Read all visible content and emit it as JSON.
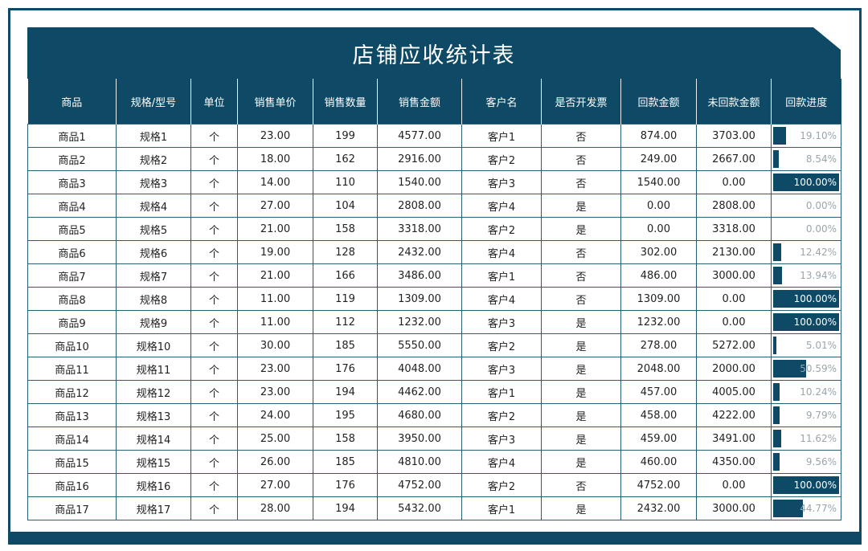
{
  "title": "店铺应收统计表",
  "columns": [
    "商品",
    "规格/型号",
    "单位",
    "销售单价",
    "销售数量",
    "销售金额",
    "客户名",
    "是否开发票",
    "回款金额",
    "未回款金额",
    "回款进度"
  ],
  "rows": [
    {
      "product": "商品1",
      "spec": "规格1",
      "unit": "个",
      "price": "23.00",
      "qty": "199",
      "amount": "4577.00",
      "customer": "客户1",
      "invoice": "否",
      "paid": "874.00",
      "unpaid": "3703.00",
      "progress_text": "19.10%",
      "progress": 0.191
    },
    {
      "product": "商品2",
      "spec": "规格2",
      "unit": "个",
      "price": "18.00",
      "qty": "162",
      "amount": "2916.00",
      "customer": "客户2",
      "invoice": "否",
      "paid": "249.00",
      "unpaid": "2667.00",
      "progress_text": "8.54%",
      "progress": 0.0854
    },
    {
      "product": "商品3",
      "spec": "规格3",
      "unit": "个",
      "price": "14.00",
      "qty": "110",
      "amount": "1540.00",
      "customer": "客户3",
      "invoice": "否",
      "paid": "1540.00",
      "unpaid": "0.00",
      "progress_text": "100.00%",
      "progress": 1.0
    },
    {
      "product": "商品4",
      "spec": "规格4",
      "unit": "个",
      "price": "27.00",
      "qty": "104",
      "amount": "2808.00",
      "customer": "客户4",
      "invoice": "是",
      "paid": "0.00",
      "unpaid": "2808.00",
      "progress_text": "0.00%",
      "progress": 0.0
    },
    {
      "product": "商品5",
      "spec": "规格5",
      "unit": "个",
      "price": "21.00",
      "qty": "158",
      "amount": "3318.00",
      "customer": "客户2",
      "invoice": "是",
      "paid": "0.00",
      "unpaid": "3318.00",
      "progress_text": "0.00%",
      "progress": 0.0
    },
    {
      "product": "商品6",
      "spec": "规格6",
      "unit": "个",
      "price": "19.00",
      "qty": "128",
      "amount": "2432.00",
      "customer": "客户4",
      "invoice": "否",
      "paid": "302.00",
      "unpaid": "2130.00",
      "progress_text": "12.42%",
      "progress": 0.1242
    },
    {
      "product": "商品7",
      "spec": "规格7",
      "unit": "个",
      "price": "21.00",
      "qty": "166",
      "amount": "3486.00",
      "customer": "客户1",
      "invoice": "否",
      "paid": "486.00",
      "unpaid": "3000.00",
      "progress_text": "13.94%",
      "progress": 0.1394
    },
    {
      "product": "商品8",
      "spec": "规格8",
      "unit": "个",
      "price": "11.00",
      "qty": "119",
      "amount": "1309.00",
      "customer": "客户4",
      "invoice": "否",
      "paid": "1309.00",
      "unpaid": "0.00",
      "progress_text": "100.00%",
      "progress": 1.0
    },
    {
      "product": "商品9",
      "spec": "规格9",
      "unit": "个",
      "price": "11.00",
      "qty": "112",
      "amount": "1232.00",
      "customer": "客户3",
      "invoice": "是",
      "paid": "1232.00",
      "unpaid": "0.00",
      "progress_text": "100.00%",
      "progress": 1.0
    },
    {
      "product": "商品10",
      "spec": "规格10",
      "unit": "个",
      "price": "30.00",
      "qty": "185",
      "amount": "5550.00",
      "customer": "客户2",
      "invoice": "是",
      "paid": "278.00",
      "unpaid": "5272.00",
      "progress_text": "5.01%",
      "progress": 0.0501
    },
    {
      "product": "商品11",
      "spec": "规格11",
      "unit": "个",
      "price": "23.00",
      "qty": "176",
      "amount": "4048.00",
      "customer": "客户3",
      "invoice": "是",
      "paid": "2048.00",
      "unpaid": "2000.00",
      "progress_text": "50.59%",
      "progress": 0.5059
    },
    {
      "product": "商品12",
      "spec": "规格12",
      "unit": "个",
      "price": "23.00",
      "qty": "194",
      "amount": "4462.00",
      "customer": "客户1",
      "invoice": "是",
      "paid": "457.00",
      "unpaid": "4005.00",
      "progress_text": "10.24%",
      "progress": 0.1024
    },
    {
      "product": "商品13",
      "spec": "规格13",
      "unit": "个",
      "price": "24.00",
      "qty": "195",
      "amount": "4680.00",
      "customer": "客户2",
      "invoice": "是",
      "paid": "458.00",
      "unpaid": "4222.00",
      "progress_text": "9.79%",
      "progress": 0.0979
    },
    {
      "product": "商品14",
      "spec": "规格14",
      "unit": "个",
      "price": "25.00",
      "qty": "158",
      "amount": "3950.00",
      "customer": "客户3",
      "invoice": "是",
      "paid": "459.00",
      "unpaid": "3491.00",
      "progress_text": "11.62%",
      "progress": 0.1162
    },
    {
      "product": "商品15",
      "spec": "规格15",
      "unit": "个",
      "price": "26.00",
      "qty": "185",
      "amount": "4810.00",
      "customer": "客户4",
      "invoice": "是",
      "paid": "460.00",
      "unpaid": "4350.00",
      "progress_text": "9.56%",
      "progress": 0.0956
    },
    {
      "product": "商品16",
      "spec": "规格16",
      "unit": "个",
      "price": "27.00",
      "qty": "176",
      "amount": "4752.00",
      "customer": "客户2",
      "invoice": "否",
      "paid": "4752.00",
      "unpaid": "0.00",
      "progress_text": "100.00%",
      "progress": 1.0
    },
    {
      "product": "商品17",
      "spec": "规格17",
      "unit": "个",
      "price": "28.00",
      "qty": "194",
      "amount": "5432.00",
      "customer": "客户1",
      "invoice": "是",
      "paid": "2432.00",
      "unpaid": "3000.00",
      "progress_text": "44.77%",
      "progress": 0.4477
    }
  ],
  "colors": {
    "accent": "#0e4a66",
    "border": "#2a5f78",
    "progress_label": "#9aa6ad"
  }
}
